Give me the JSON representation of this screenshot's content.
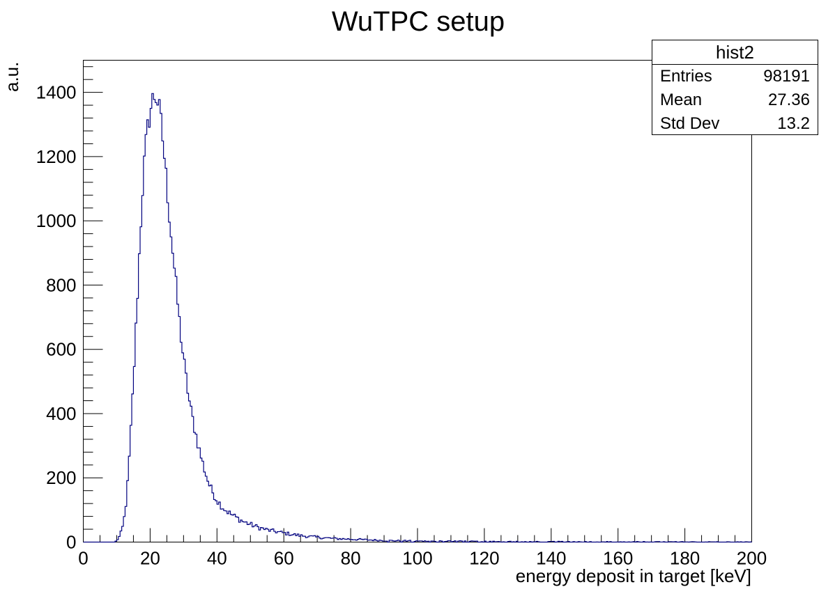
{
  "chart_data": {
    "type": "histogram",
    "title": "WuTPC setup",
    "xlabel": "energy deposit in target [keV]",
    "ylabel": "a.u.",
    "xlim": [
      0,
      200
    ],
    "ylim": [
      0,
      1500
    ],
    "x_ticks": [
      "0",
      "20",
      "40",
      "60",
      "80",
      "100",
      "120",
      "140",
      "160",
      "180",
      "200"
    ],
    "y_ticks": [
      "0",
      "200",
      "400",
      "600",
      "800",
      "1000",
      "1200",
      "1400"
    ],
    "line_color": "#00007f",
    "bin_width": 0.5,
    "profile": {
      "x": [
        9.5,
        10,
        11,
        12,
        13,
        14,
        15,
        16,
        17,
        18,
        19,
        20,
        21,
        22,
        23,
        24,
        25,
        26,
        27,
        28,
        29,
        30,
        31,
        32,
        33,
        34,
        35,
        36,
        37,
        38,
        39,
        40,
        42,
        44,
        46,
        48,
        50,
        52,
        55,
        58,
        60,
        65,
        70,
        75,
        80,
        85,
        90,
        95,
        100,
        110,
        120,
        130,
        140,
        150,
        160,
        170,
        180,
        190,
        199.5
      ],
      "y": [
        0,
        5,
        20,
        55,
        140,
        300,
        500,
        720,
        950,
        1150,
        1270,
        1340,
        1390,
        1385,
        1330,
        1230,
        1110,
        990,
        880,
        770,
        660,
        570,
        490,
        420,
        370,
        320,
        275,
        235,
        200,
        170,
        150,
        130,
        105,
        88,
        75,
        63,
        55,
        47,
        38,
        32,
        28,
        20,
        15,
        11,
        9,
        7,
        5,
        4,
        3,
        2.5,
        2,
        1.6,
        1.3,
        1,
        0.8,
        0.7,
        0.6,
        0.5,
        0.4
      ]
    }
  },
  "stats": {
    "name": "hist2",
    "entries_label": "Entries",
    "entries_value": "98191",
    "mean_label": "Mean",
    "mean_value": "27.36",
    "stddev_label": "Std Dev",
    "stddev_value": "13.2"
  }
}
